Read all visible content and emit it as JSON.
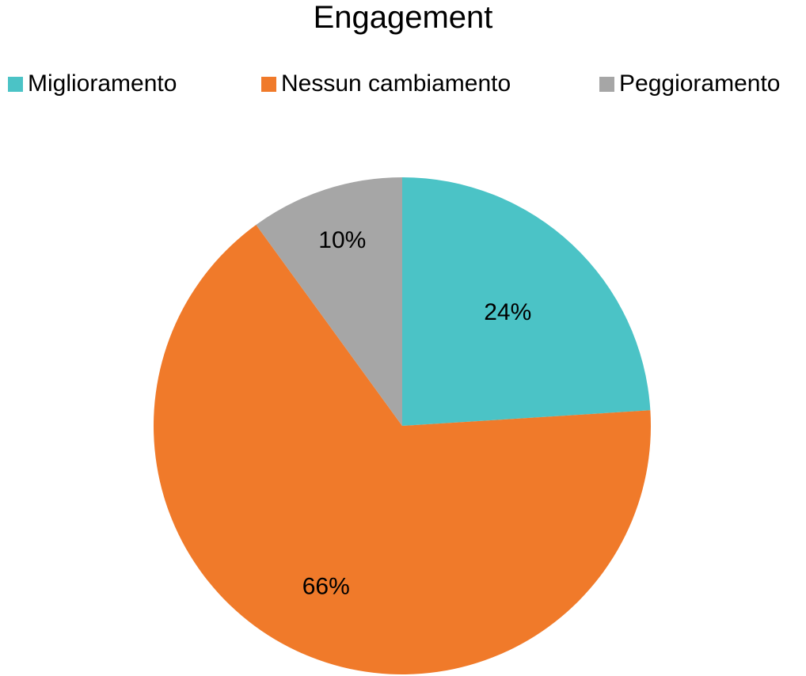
{
  "chart_data": {
    "type": "pie",
    "title": "Engagement",
    "categories": [
      "Miglioramento",
      "Nessun cambiamento",
      "Peggioramento"
    ],
    "values": [
      24,
      66,
      10
    ],
    "labels": [
      "24%",
      "66%",
      "10%"
    ],
    "colors": [
      "#4bc3c6",
      "#f07a2a",
      "#a6a6a6"
    ],
    "legend_position": "top"
  }
}
